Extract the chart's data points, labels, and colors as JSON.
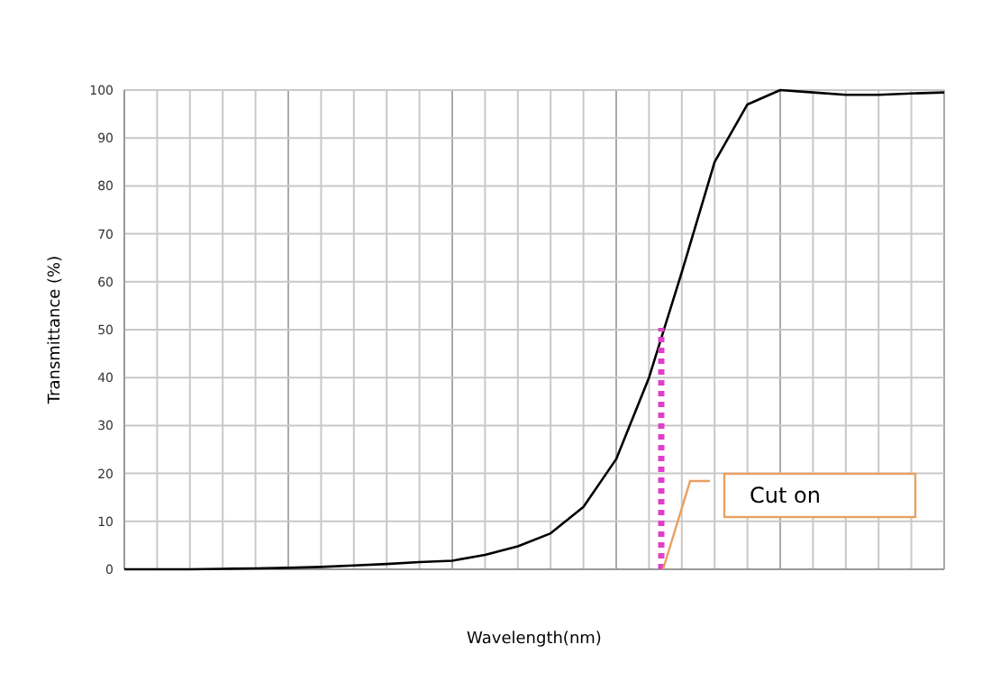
{
  "chart_data": {
    "type": "line",
    "xlabel": "Wavelength(nm)",
    "ylabel": "Transmittance (%)",
    "categories": [
      null,
      null,
      null,
      null,
      null,
      null,
      null,
      null,
      null,
      null,
      null,
      null,
      null,
      null,
      null,
      null,
      null,
      null,
      null,
      null,
      null,
      null,
      null,
      null,
      null,
      null
    ],
    "ylim": [
      0,
      100
    ],
    "yticks": [
      0,
      10,
      20,
      30,
      40,
      50,
      60,
      70,
      80,
      90,
      100
    ],
    "grid": true,
    "marker": "none",
    "series": [
      {
        "color": "#000000",
        "line_style": "solid",
        "values": [
          0,
          0,
          0,
          0.1,
          0.2,
          0.3,
          0.5,
          0.8,
          1.1,
          1.5,
          1.8,
          3,
          4.8,
          7.5,
          13,
          23,
          40,
          62,
          85,
          97,
          100,
          99.5,
          99,
          99,
          99.3,
          99.5
        ]
      }
    ],
    "annotations": [
      "Cut on"
    ]
  }
}
